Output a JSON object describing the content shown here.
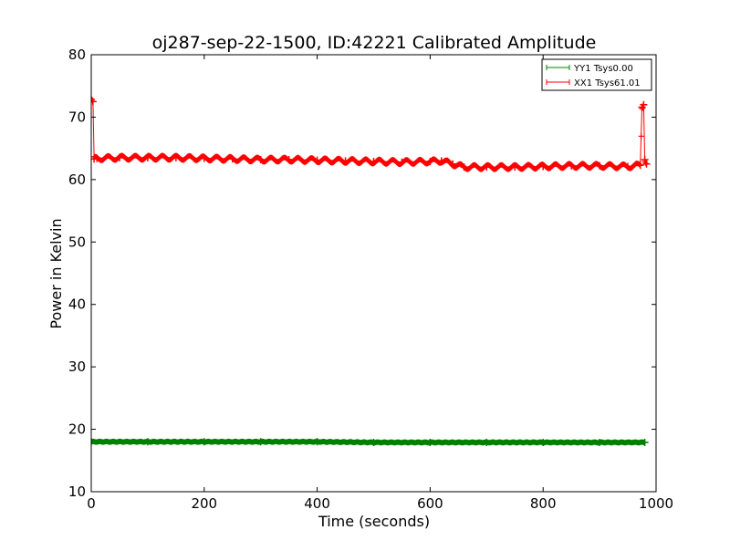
{
  "chart_data": {
    "type": "line",
    "title": "oj287-sep-22-1500, ID:42221 Calibrated Amplitude",
    "xlabel": "Time (seconds)",
    "ylabel": "Power in Kelvin",
    "xlim": [
      0,
      1000
    ],
    "ylim": [
      10,
      80
    ],
    "xticks": [
      0,
      200,
      400,
      600,
      800,
      1000
    ],
    "yticks": [
      10,
      20,
      30,
      40,
      50,
      60,
      70,
      80
    ],
    "grid": false,
    "legend_position": "top-right",
    "series": [
      {
        "name": "YY1 Tsys0.00",
        "color": "#008000",
        "marker": "+",
        "x": [
          0,
          100,
          200,
          300,
          400,
          500,
          600,
          700,
          800,
          900,
          980
        ],
        "y": [
          18.0,
          18.0,
          18.0,
          18.0,
          18.0,
          17.9,
          17.9,
          17.9,
          17.9,
          17.9,
          17.9
        ]
      },
      {
        "name": "XX1 Tsys61.01",
        "color": "#ff0000",
        "marker": "+",
        "x": [
          0,
          3,
          5,
          10,
          50,
          100,
          150,
          200,
          250,
          300,
          350,
          400,
          450,
          500,
          550,
          600,
          620,
          640,
          660,
          700,
          750,
          800,
          850,
          900,
          950,
          972,
          975,
          978,
          980,
          983
        ],
        "y": [
          72.8,
          72.5,
          63.3,
          63.4,
          63.5,
          63.5,
          63.5,
          63.4,
          63.3,
          63.2,
          63.2,
          63.1,
          63.0,
          62.9,
          62.8,
          62.9,
          63.0,
          62.5,
          62.0,
          62.0,
          62.0,
          62.1,
          62.2,
          62.2,
          62.1,
          62.3,
          71.6,
          72.0,
          63.2,
          62.5
        ]
      }
    ]
  }
}
